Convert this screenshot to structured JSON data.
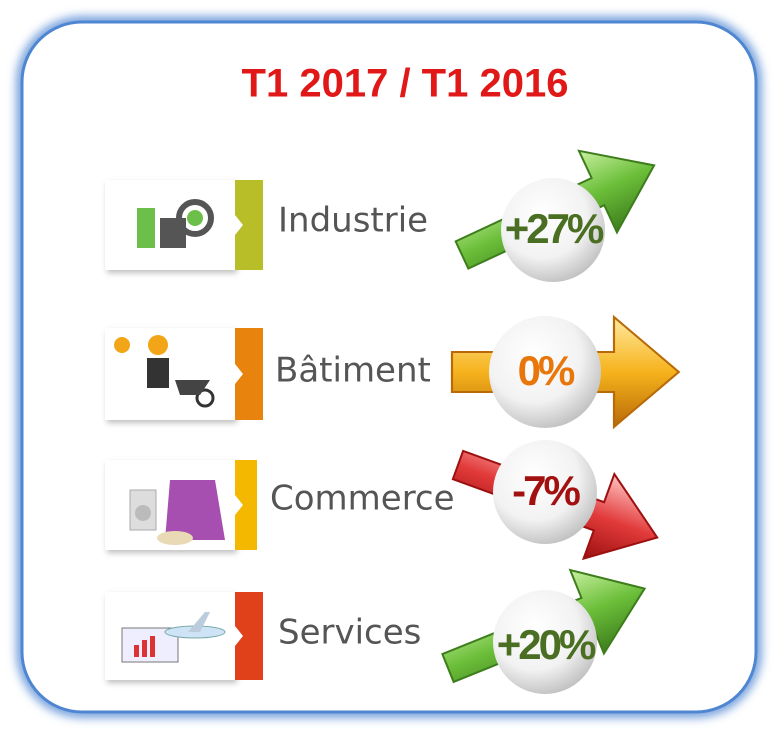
{
  "title": "T1 2017 / T1 2016",
  "rows": [
    {
      "label": "Industrie",
      "value": "+27%"
    },
    {
      "label": "Bâtiment",
      "value": "0%"
    },
    {
      "label": "Commerce",
      "value": "-7%"
    },
    {
      "label": "Services",
      "value": "+20%"
    }
  ]
}
